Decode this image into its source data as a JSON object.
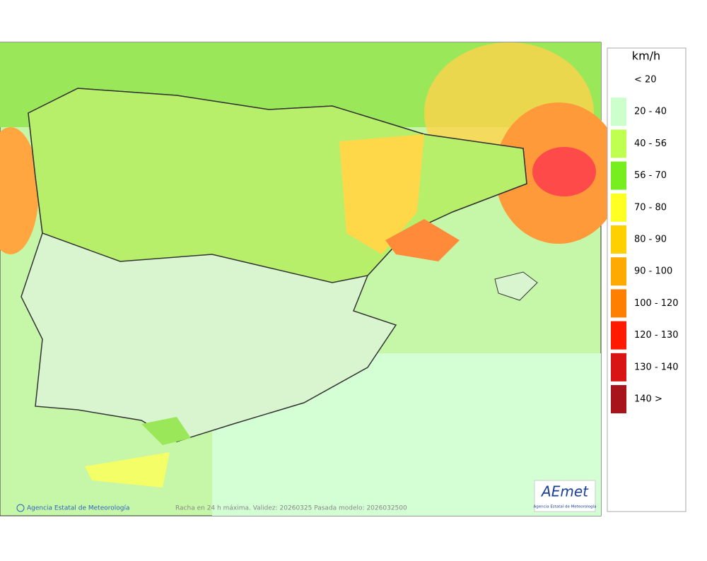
{
  "legend": {
    "unit": "km/h",
    "items": [
      {
        "label": "< 20"
      },
      {
        "label": "20 - 40",
        "color": "#ccffcc"
      },
      {
        "label": "40 - 56",
        "color": "#bfff4f"
      },
      {
        "label": "56 - 70",
        "color": "#77ee1e"
      },
      {
        "label": "70 - 80",
        "color": "#ffff22"
      },
      {
        "label": "80 - 90",
        "color": "#ffd000"
      },
      {
        "label": "90 - 100",
        "color": "#ffaa00"
      },
      {
        "label": "100 - 120",
        "color": "#ff8000"
      },
      {
        "label": "120 - 130",
        "color": "#ff1a00"
      },
      {
        "label": "130 - 140",
        "color": "#d81414"
      },
      {
        "label": "140 >",
        "color": "#a8141c"
      }
    ]
  },
  "footer": {
    "credit": "Agencia Estatal de Meteorología",
    "caption": "Racha en 24 h máxima. Validez: 20260325 Pasada modelo: 2026032500"
  },
  "logo": {
    "name": "AEmet",
    "subtitle": "Agencia Estatal de Meteorología"
  }
}
